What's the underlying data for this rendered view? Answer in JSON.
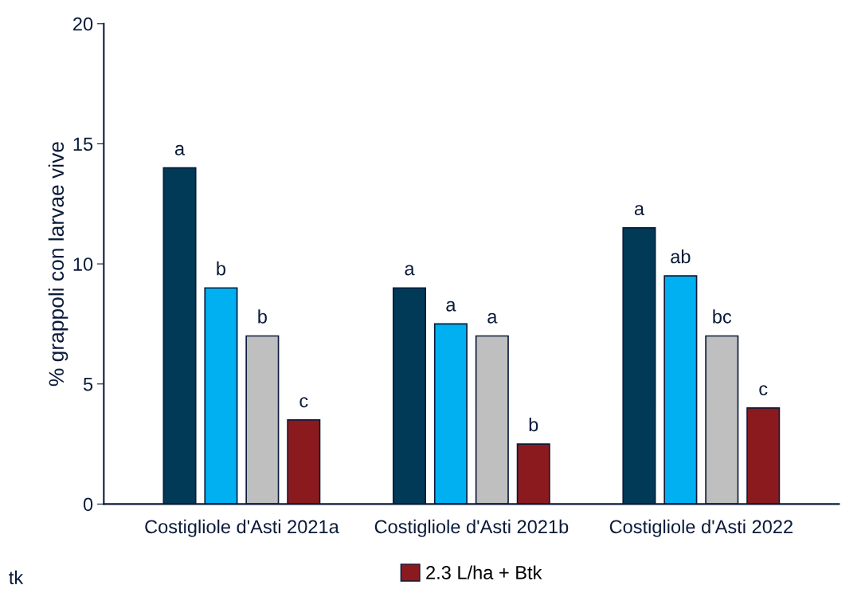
{
  "chart_data": {
    "type": "bar",
    "ylabel": "% grappoli con larvae vive",
    "categories": [
      "Costigliole d'Asti 2021a",
      "Costigliole d'Asti 2021b",
      "Costigliole d'Asti 2022"
    ],
    "series": [
      {
        "color": "#003a57",
        "values": [
          14,
          9,
          11.5
        ],
        "value_labels": [
          "a",
          "a",
          "a"
        ]
      },
      {
        "color": "#00b0f0",
        "values": [
          9,
          7.5,
          9.5
        ],
        "value_labels": [
          "b",
          "a",
          "ab"
        ]
      },
      {
        "color": "#bfbfbf",
        "values": [
          7,
          7,
          7
        ],
        "value_labels": [
          "b",
          "a",
          "bc"
        ]
      },
      {
        "name": "2.3 L/ha + Btk",
        "color": "#8b1a1f",
        "values": [
          3.5,
          2.5,
          4
        ],
        "value_labels": [
          "c",
          "b",
          "c"
        ]
      }
    ],
    "ylim": [
      0,
      20
    ],
    "yticks": [
      0,
      5,
      10,
      15,
      20
    ],
    "grid": false,
    "legend": "bottom",
    "annotations": [
      "tk"
    ]
  }
}
